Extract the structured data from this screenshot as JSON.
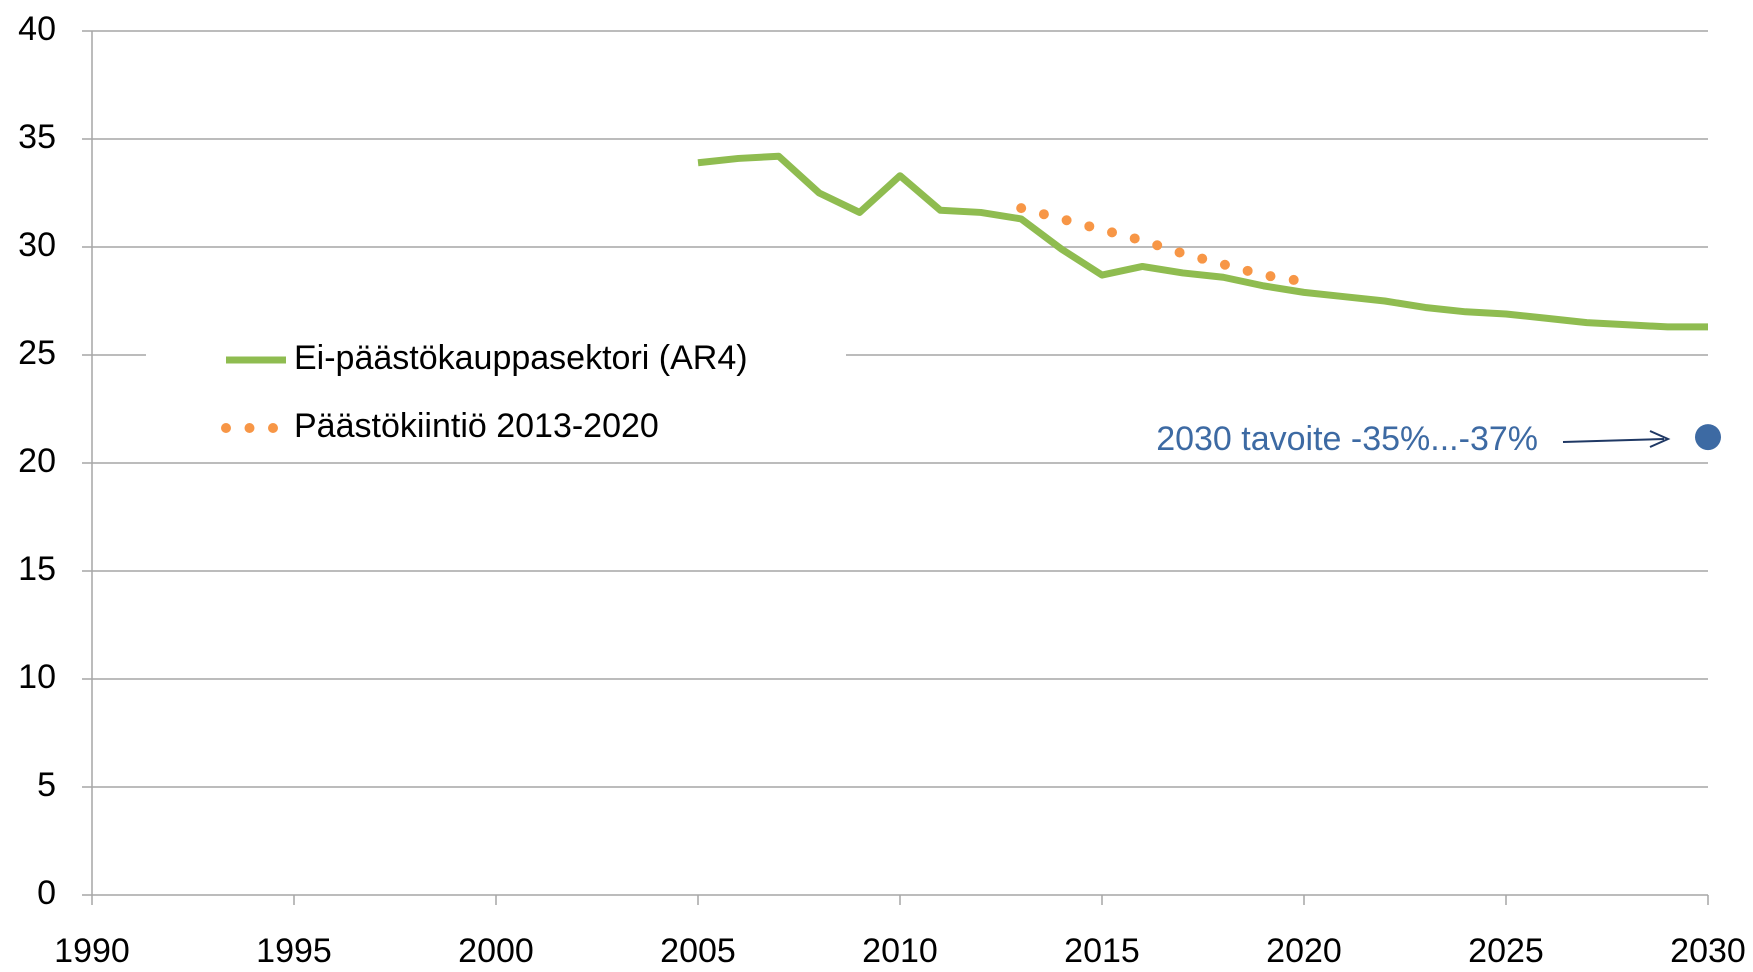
{
  "chart_data": {
    "type": "line",
    "xlim": [
      1990,
      2030
    ],
    "xticks": [
      1990,
      1995,
      2000,
      2005,
      2010,
      2015,
      2020,
      2025,
      2030
    ],
    "ylim": [
      0,
      40
    ],
    "yticks": [
      0,
      5,
      10,
      15,
      20,
      25,
      30,
      35,
      40
    ],
    "grid": true,
    "legend": "left",
    "series": [
      {
        "name": "Ei-päästökauppasektori (AR4)",
        "color": "#8fbc50",
        "style": "solid",
        "x": [
          2005,
          2006,
          2007,
          2008,
          2009,
          2010,
          2011,
          2012,
          2013,
          2014,
          2015,
          2016,
          2017,
          2018,
          2019,
          2020,
          2021,
          2022,
          2023,
          2024,
          2025,
          2026,
          2027,
          2028,
          2029,
          2030
        ],
        "values": [
          33.9,
          34.1,
          34.2,
          32.5,
          31.6,
          33.3,
          31.7,
          31.6,
          31.3,
          29.9,
          28.7,
          29.1,
          28.8,
          28.6,
          28.2,
          27.9,
          27.7,
          27.5,
          27.2,
          27.0,
          26.9,
          26.7,
          26.5,
          26.4,
          26.3,
          26.3
        ]
      },
      {
        "name": "Päästökiintiö 2013-2020",
        "color": "#f79646",
        "style": "dotted",
        "x": [
          2013,
          2014,
          2015,
          2016,
          2017,
          2018,
          2019,
          2020
        ],
        "values": [
          31.8,
          31.3,
          30.8,
          30.3,
          29.7,
          29.2,
          28.7,
          28.4
        ]
      }
    ],
    "target": {
      "x": 2030,
      "value": 21.2,
      "color": "#3d6aa3"
    },
    "annotation": "2030 tavoite -35%...-37%"
  }
}
